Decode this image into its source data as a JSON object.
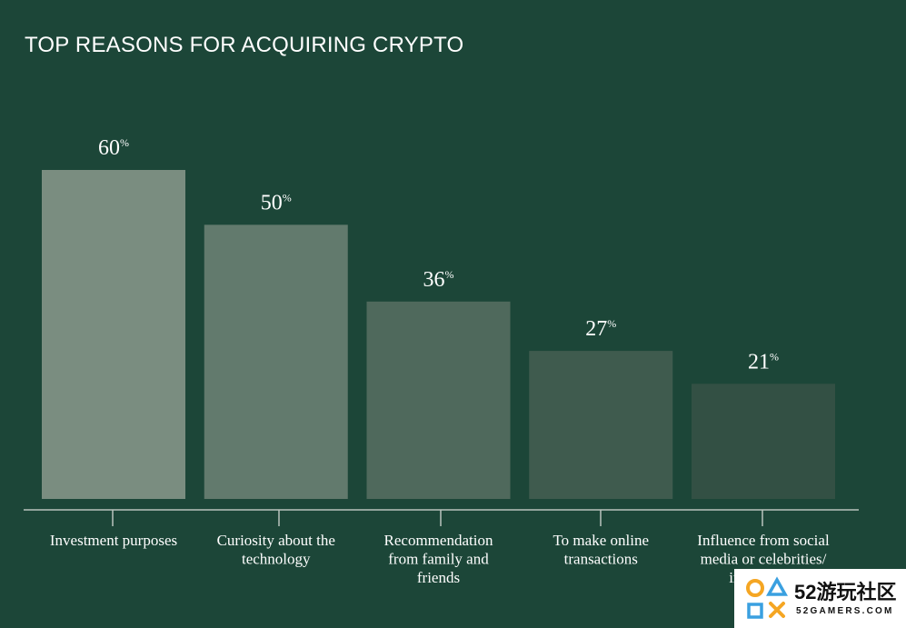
{
  "colors": {
    "background": "#1c4638",
    "bars": [
      "#7a8d80",
      "#627a6d",
      "#4f695c",
      "#3f5b4e",
      "#335044"
    ],
    "text": "#ffffff",
    "axis": "#b9c4bd"
  },
  "chart_data": {
    "type": "bar",
    "title": "TOP REASONS FOR ACQUIRING CRYPTO",
    "categories": [
      [
        "Investment purposes"
      ],
      [
        "Curiosity about the",
        "technology"
      ],
      [
        "Recommendation",
        "from family and",
        "friends"
      ],
      [
        "To make online",
        "transactions"
      ],
      [
        "Influence from social",
        "media or celebrities/",
        "influencers"
      ]
    ],
    "values": [
      60,
      50,
      36,
      27,
      21
    ],
    "value_unit": "%",
    "ylim": [
      0,
      60
    ],
    "grid": false,
    "legend": "none"
  },
  "watermark": {
    "title": "52游玩社区",
    "subtitle": "52GAMERS.COM",
    "logo_icon": "game-controller-buttons-icon"
  }
}
